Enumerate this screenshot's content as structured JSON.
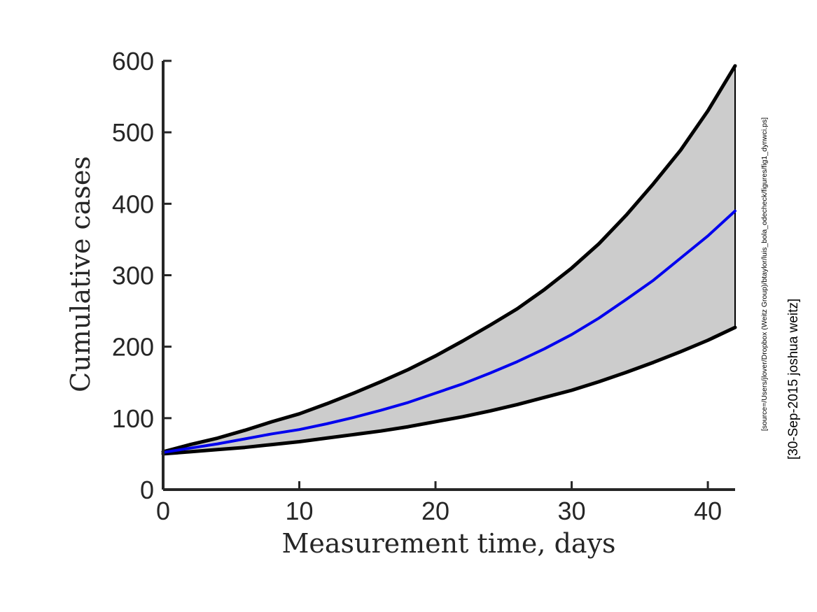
{
  "chart_data": {
    "type": "area",
    "xlabel": "Measurement time, days",
    "ylabel": "Cumulative cases",
    "xlim": [
      0,
      42
    ],
    "ylim": [
      0,
      600
    ],
    "x_ticks": [
      0,
      10,
      20,
      30,
      40
    ],
    "y_ticks": [
      0,
      100,
      200,
      300,
      400,
      500,
      600
    ],
    "grid": false,
    "colors": {
      "band_fill": "#cccccc",
      "bounds": "#000000",
      "median": "#0000ee",
      "axis": "#262626"
    },
    "x": [
      0,
      2,
      4,
      6,
      8,
      10,
      12,
      14,
      16,
      18,
      20,
      22,
      24,
      26,
      28,
      30,
      32,
      34,
      36,
      38,
      40,
      42
    ],
    "series": [
      {
        "role": "upper",
        "values": [
          53,
          63,
          72,
          83,
          95,
          106,
          120,
          135,
          151,
          168,
          187,
          208,
          230,
          253,
          280,
          310,
          344,
          384,
          428,
          475,
          530,
          593
        ]
      },
      {
        "role": "median",
        "values": [
          52,
          58,
          64,
          71,
          78,
          84,
          92,
          101,
          111,
          122,
          135,
          148,
          163,
          179,
          197,
          217,
          240,
          266,
          293,
          324,
          355,
          390
        ]
      },
      {
        "role": "lower",
        "values": [
          50,
          53,
          56,
          59,
          63,
          67,
          72,
          77,
          82,
          88,
          95,
          102,
          110,
          119,
          129,
          139,
          151,
          164,
          178,
          193,
          209,
          227
        ]
      }
    ]
  },
  "side_notes": {
    "source": "[source=/Users/jlover/Dropbox (Weitz Group)/btaylor/luis_bola_odecheck/figures/fig1_dynwci.ps]",
    "stamp": "[30-Sep-2015 joshua weitz]"
  }
}
